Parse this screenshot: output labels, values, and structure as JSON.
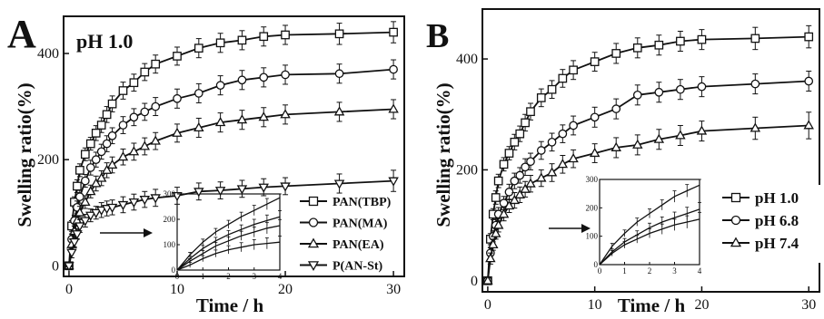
{
  "colors": {
    "ink": "#111111",
    "background": "#ffffff"
  },
  "chart_data": [
    {
      "panel_label": "A",
      "type": "line",
      "title": "pH 1.0",
      "xlabel": "Time / h",
      "ylabel": "Swelling ratio(%)",
      "xlim": [
        -0.5,
        31
      ],
      "ylim": [
        -20,
        470
      ],
      "xticks": [
        0,
        10,
        20,
        30
      ],
      "yticks": [
        0,
        200,
        400
      ],
      "legend_position": "bottom-right",
      "series": [
        {
          "name": "PAN(TBP)",
          "marker": "square",
          "x": [
            0,
            0.25,
            0.5,
            0.75,
            1,
            1.5,
            2,
            2.5,
            3,
            3.5,
            4,
            5,
            6,
            7,
            8,
            10,
            12,
            14,
            16,
            18,
            20,
            25,
            30
          ],
          "y": [
            0,
            75,
            120,
            150,
            180,
            210,
            230,
            250,
            265,
            285,
            305,
            330,
            345,
            365,
            380,
            395,
            410,
            420,
            425,
            432,
            435,
            437,
            440
          ],
          "err": [
            0,
            10,
            10,
            12,
            12,
            12,
            12,
            14,
            14,
            15,
            15,
            16,
            16,
            16,
            17,
            17,
            18,
            18,
            18,
            18,
            18,
            20,
            20
          ]
        },
        {
          "name": "PAN(MA)",
          "marker": "circle",
          "x": [
            0,
            0.25,
            0.5,
            0.75,
            1,
            1.5,
            2,
            2.5,
            3,
            3.5,
            4,
            5,
            6,
            7,
            8,
            10,
            12,
            14,
            16,
            18,
            20,
            25,
            30
          ],
          "y": [
            0,
            50,
            85,
            110,
            130,
            160,
            185,
            200,
            215,
            230,
            245,
            265,
            280,
            290,
            300,
            315,
            325,
            340,
            350,
            355,
            360,
            362,
            370
          ],
          "err": [
            0,
            10,
            10,
            12,
            12,
            12,
            14,
            14,
            14,
            15,
            15,
            16,
            16,
            16,
            17,
            18,
            18,
            18,
            18,
            18,
            18,
            18,
            18
          ]
        },
        {
          "name": "PAN(EA)",
          "marker": "triangle-up",
          "x": [
            0,
            0.25,
            0.5,
            0.75,
            1,
            1.5,
            2,
            2.5,
            3,
            3.5,
            4,
            5,
            6,
            7,
            8,
            10,
            12,
            14,
            16,
            18,
            20,
            25,
            30
          ],
          "y": [
            0,
            40,
            65,
            85,
            100,
            120,
            140,
            155,
            165,
            180,
            190,
            205,
            215,
            225,
            235,
            250,
            260,
            270,
            275,
            280,
            285,
            290,
            295
          ],
          "err": [
            0,
            10,
            10,
            10,
            12,
            12,
            12,
            14,
            14,
            14,
            15,
            15,
            16,
            16,
            16,
            17,
            18,
            18,
            18,
            18,
            18,
            18,
            18
          ]
        },
        {
          "name": "P(AN-St)",
          "marker": "triangle-down",
          "x": [
            0,
            0.25,
            0.5,
            0.75,
            1,
            1.5,
            2,
            2.5,
            3,
            3.5,
            4,
            5,
            6,
            7,
            8,
            10,
            12,
            14,
            16,
            18,
            20,
            25,
            30
          ],
          "y": [
            0,
            25,
            45,
            60,
            75,
            85,
            95,
            100,
            105,
            108,
            110,
            115,
            120,
            125,
            128,
            132,
            140,
            142,
            145,
            148,
            150,
            155,
            160
          ],
          "err": [
            0,
            10,
            10,
            10,
            12,
            12,
            12,
            12,
            14,
            14,
            14,
            15,
            15,
            15,
            16,
            16,
            16,
            16,
            16,
            16,
            16,
            18,
            20
          ]
        }
      ],
      "inset": {
        "xlim": [
          0,
          4
        ],
        "ylim": [
          0,
          300
        ],
        "xticks": [
          0,
          1,
          2,
          3,
          4
        ],
        "yticks": [
          0,
          100,
          200,
          300
        ],
        "x": [
          0,
          0.5,
          1,
          1.5,
          2,
          2.5,
          3,
          3.5,
          4
        ],
        "series": [
          {
            "y": [
              0,
              60,
              110,
              150,
              180,
              210,
              235,
              260,
              285
            ],
            "err": [
              0,
              10,
              12,
              14,
              16,
              18,
              20,
              22,
              24
            ]
          },
          {
            "y": [
              0,
              45,
              85,
              115,
              140,
              160,
              180,
              195,
              210
            ],
            "err": [
              0,
              10,
              12,
              14,
              16,
              18,
              20,
              22,
              24
            ]
          },
          {
            "y": [
              0,
              35,
              65,
              95,
              115,
              135,
              150,
              165,
              175
            ],
            "err": [
              0,
              10,
              12,
              14,
              16,
              18,
              20,
              22,
              24
            ]
          },
          {
            "y": [
              0,
              20,
              45,
              65,
              80,
              90,
              100,
              105,
              110
            ],
            "err": [
              0,
              10,
              12,
              14,
              16,
              18,
              20,
              22,
              24
            ]
          }
        ]
      }
    },
    {
      "panel_label": "B",
      "type": "line",
      "title": "",
      "xlabel": "Time / h",
      "ylabel": "Swelling ratio(%)",
      "xlim": [
        -0.5,
        31
      ],
      "ylim": [
        -20,
        490
      ],
      "xticks": [
        0,
        10,
        20,
        30
      ],
      "yticks": [
        0,
        200,
        400
      ],
      "legend_position": "bottom-right",
      "series": [
        {
          "name": "pH 1.0",
          "marker": "square",
          "x": [
            0,
            0.25,
            0.5,
            0.75,
            1,
            1.5,
            2,
            2.5,
            3,
            3.5,
            4,
            5,
            6,
            7,
            8,
            10,
            12,
            14,
            16,
            18,
            20,
            25,
            30
          ],
          "y": [
            0,
            75,
            120,
            150,
            180,
            210,
            230,
            250,
            265,
            285,
            305,
            330,
            345,
            365,
            380,
            395,
            410,
            420,
            425,
            432,
            435,
            437,
            440
          ],
          "err": [
            0,
            10,
            10,
            12,
            12,
            12,
            12,
            14,
            14,
            15,
            15,
            16,
            16,
            16,
            17,
            17,
            18,
            18,
            18,
            18,
            18,
            20,
            20
          ]
        },
        {
          "name": "pH 6.8",
          "marker": "circle",
          "x": [
            0,
            0.25,
            0.5,
            0.75,
            1,
            1.5,
            2,
            2.5,
            3,
            3.5,
            4,
            5,
            6,
            7,
            8,
            10,
            12,
            14,
            16,
            18,
            20,
            25,
            30
          ],
          "y": [
            0,
            50,
            80,
            100,
            120,
            140,
            160,
            180,
            190,
            205,
            215,
            235,
            250,
            265,
            280,
            295,
            310,
            335,
            340,
            345,
            350,
            355,
            360
          ],
          "err": [
            0,
            10,
            10,
            12,
            12,
            12,
            14,
            14,
            14,
            15,
            15,
            16,
            16,
            16,
            17,
            18,
            18,
            18,
            18,
            18,
            18,
            18,
            18
          ]
        },
        {
          "name": "pH 7.4",
          "marker": "triangle-up",
          "x": [
            0,
            0.25,
            0.5,
            0.75,
            1,
            1.5,
            2,
            2.5,
            3,
            3.5,
            4,
            5,
            6,
            7,
            8,
            10,
            12,
            14,
            16,
            18,
            20,
            25,
            30
          ],
          "y": [
            0,
            40,
            65,
            85,
            100,
            120,
            135,
            145,
            155,
            165,
            175,
            185,
            195,
            210,
            220,
            230,
            240,
            245,
            255,
            262,
            270,
            275,
            280
          ],
          "err": [
            0,
            10,
            10,
            10,
            12,
            12,
            12,
            14,
            14,
            14,
            15,
            15,
            16,
            16,
            16,
            17,
            18,
            18,
            18,
            18,
            18,
            20,
            24
          ]
        }
      ],
      "inset": {
        "xlim": [
          0,
          4
        ],
        "ylim": [
          0,
          300
        ],
        "xticks": [
          0,
          1,
          2,
          3,
          4
        ],
        "yticks": [
          0,
          100,
          200,
          300
        ],
        "x": [
          0,
          0.5,
          1,
          1.5,
          2,
          2.5,
          3,
          3.5,
          4
        ],
        "series": [
          {
            "y": [
              0,
              65,
              110,
              150,
              180,
              210,
              240,
              260,
              280
            ],
            "err": [
              0,
              10,
              12,
              14,
              16,
              18,
              20,
              22,
              24
            ]
          },
          {
            "y": [
              0,
              45,
              80,
              105,
              130,
              150,
              165,
              180,
              195
            ],
            "err": [
              0,
              10,
              12,
              14,
              16,
              18,
              20,
              22,
              24
            ]
          },
          {
            "y": [
              0,
              40,
              70,
              90,
              110,
              125,
              140,
              150,
              160
            ],
            "err": [
              0,
              10,
              12,
              14,
              16,
              18,
              20,
              22,
              24
            ]
          }
        ]
      }
    }
  ]
}
